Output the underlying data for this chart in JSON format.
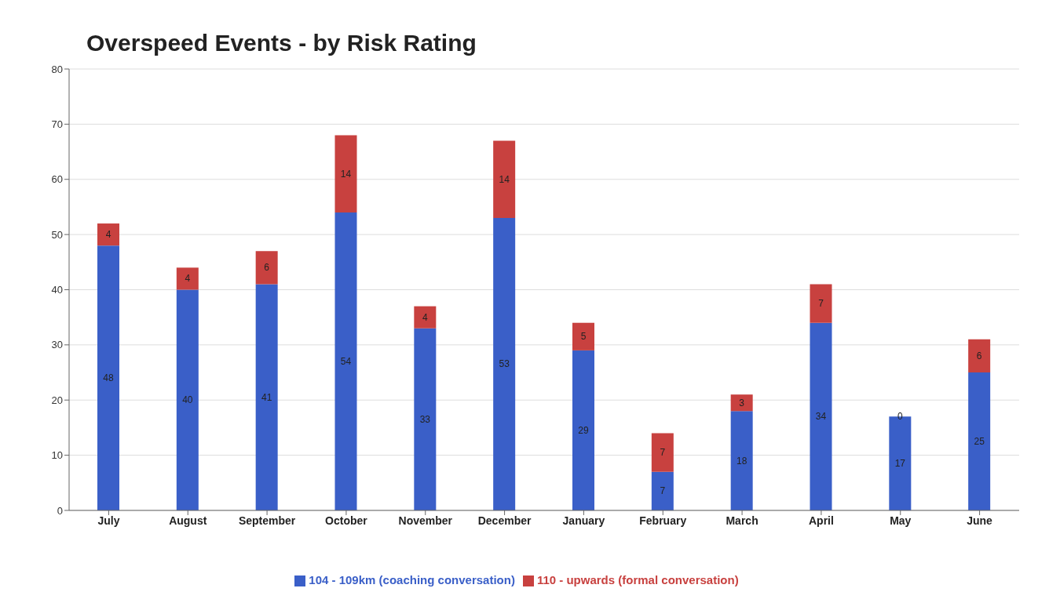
{
  "chart_data": {
    "type": "bar",
    "title": "Overspeed Events - by Risk Rating",
    "categories": [
      "July",
      "August",
      "September",
      "October",
      "November",
      "December",
      "January",
      "February",
      "March",
      "April",
      "May",
      "June"
    ],
    "series": [
      {
        "name": "104 - 109km (coaching conversation)",
        "color": "#3a5fc8",
        "values": [
          48,
          40,
          41,
          54,
          33,
          53,
          29,
          7,
          18,
          34,
          17,
          25
        ]
      },
      {
        "name": "110 - upwards (formal conversation)",
        "color": "#c8413f",
        "values": [
          4,
          4,
          6,
          14,
          4,
          14,
          5,
          7,
          3,
          7,
          0,
          6
        ]
      }
    ],
    "stacked": true,
    "ylim": [
      0,
      80
    ],
    "yticks": [
      0,
      10,
      20,
      30,
      40,
      50,
      60,
      70,
      80
    ],
    "grid": "y",
    "legend": "bottom",
    "data_labels": true
  }
}
